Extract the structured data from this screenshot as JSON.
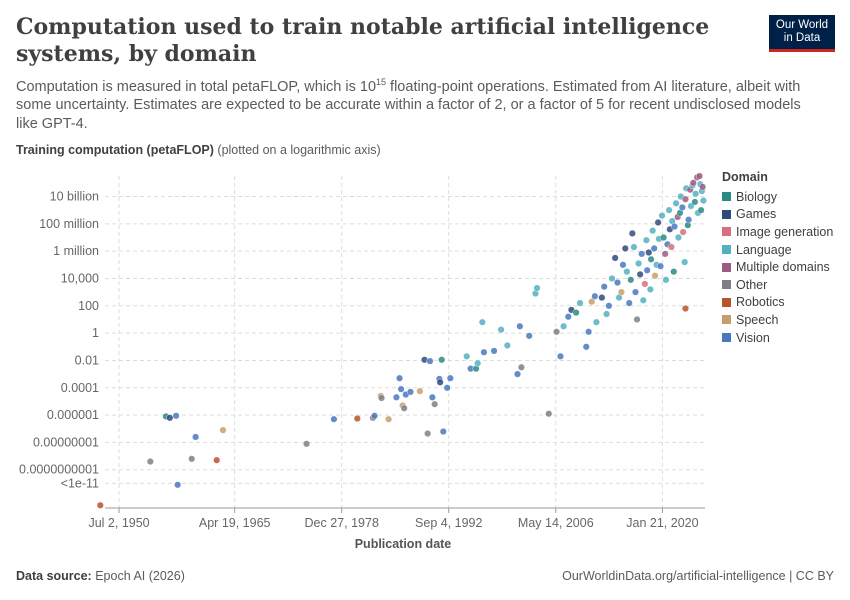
{
  "header": {
    "title": "Computation used to train notable artificial intelligence systems, by domain",
    "subtitle_pre": "Computation is measured in total petaFLOP, which is 10",
    "subtitle_sup": "15",
    "subtitle_post": " floating-point operations. Estimated from AI literature, albeit with some uncertainty. Estimates are expected to be accurate within a factor of 2, or a factor of 5 for recent undisclosed models like GPT-4."
  },
  "logo": {
    "line1": "Our World",
    "line2": "in Data"
  },
  "y_axis_title": {
    "bold": "Training computation (petaFLOP)",
    "note": "(plotted on a logarithmic axis)"
  },
  "footer": {
    "source_label": "Data source:",
    "source_value": "Epoch AI (2026)",
    "link": "OurWorldinData.org/artificial-intelligence | CC BY"
  },
  "colors": {
    "Biology": "#2a8a84",
    "Games": "#2f4b7c",
    "Image generation": "#d6707e",
    "Language": "#52b0bf",
    "Multiple domains": "#9d5a82",
    "Other": "#7d8186",
    "Robotics": "#b8542c",
    "Speech": "#c59d6f",
    "Vision": "#4a78bf"
  },
  "chart_data": {
    "type": "scatter",
    "scale": "log",
    "xlabel": "Publication date",
    "ylabel": "Training computation (petaFLOP)",
    "x_ticks": [
      {
        "label": "Jul 2, 1950",
        "year": 1950.5
      },
      {
        "label": "Apr 19, 1965",
        "year": 1965.3
      },
      {
        "label": "Dec 27, 1978",
        "year": 1979.0
      },
      {
        "label": "Sep 4, 1992",
        "year": 1992.7
      },
      {
        "label": "May 14, 2006",
        "year": 2006.4
      },
      {
        "label": "Jan 21, 2020",
        "year": 2020.05
      }
    ],
    "y_ticks": [
      {
        "label": "<1e-11",
        "exp": -11
      },
      {
        "label": "0.0000000001",
        "exp": -10
      },
      {
        "label": "0.00000001",
        "exp": -8
      },
      {
        "label": "0.000001",
        "exp": -6
      },
      {
        "label": "0.0001",
        "exp": -4
      },
      {
        "label": "0.01",
        "exp": -2
      },
      {
        "label": "1",
        "exp": 0
      },
      {
        "label": "100",
        "exp": 2
      },
      {
        "label": "10,000",
        "exp": 4
      },
      {
        "label": "1 million",
        "exp": 6
      },
      {
        "label": "100 million",
        "exp": 8
      },
      {
        "label": "10 billion",
        "exp": 10
      }
    ],
    "xlim": [
      1948.7,
      2025.5
    ],
    "ylim_exp": [
      -12.8,
      11.5
    ],
    "grid": true,
    "legend": {
      "title": "Domain",
      "position": "right",
      "entries": [
        "Biology",
        "Games",
        "Image generation",
        "Language",
        "Multiple domains",
        "Other",
        "Robotics",
        "Speech",
        "Vision"
      ]
    },
    "points": [
      {
        "d": "Robotics",
        "x": 1948.1,
        "e": -12.6
      },
      {
        "d": "Other",
        "x": 1954.5,
        "e": -9.4
      },
      {
        "d": "Biology",
        "x": 1956.5,
        "e": -6.1
      },
      {
        "d": "Games",
        "x": 1957.0,
        "e": -6.2
      },
      {
        "d": "Vision",
        "x": 1957.8,
        "e": -6.05
      },
      {
        "d": "Vision",
        "x": 1958.0,
        "e": -11.1
      },
      {
        "d": "Other",
        "x": 1959.8,
        "e": -9.2
      },
      {
        "d": "Vision",
        "x": 1960.3,
        "e": -7.6
      },
      {
        "d": "Robotics",
        "x": 1963.0,
        "e": -9.3
      },
      {
        "d": "Speech",
        "x": 1963.8,
        "e": -7.1
      },
      {
        "d": "Other",
        "x": 1974.5,
        "e": -8.1
      },
      {
        "d": "Vision",
        "x": 1978.0,
        "e": -6.3
      },
      {
        "d": "Robotics",
        "x": 1981.0,
        "e": -6.25
      },
      {
        "d": "Other",
        "x": 1983.0,
        "e": -6.2
      },
      {
        "d": "Vision",
        "x": 1983.2,
        "e": -6.05
      },
      {
        "d": "Speech",
        "x": 1984.0,
        "e": -4.6
      },
      {
        "d": "Other",
        "x": 1984.1,
        "e": -4.75
      },
      {
        "d": "Speech",
        "x": 1985.0,
        "e": -6.3
      },
      {
        "d": "Vision",
        "x": 1986.0,
        "e": -4.7
      },
      {
        "d": "Vision",
        "x": 1986.4,
        "e": -3.3
      },
      {
        "d": "Vision",
        "x": 1986.6,
        "e": -4.1
      },
      {
        "d": "Speech",
        "x": 1986.8,
        "e": -5.3
      },
      {
        "d": "Other",
        "x": 1987.0,
        "e": -5.5
      },
      {
        "d": "Vision",
        "x": 1987.2,
        "e": -4.5
      },
      {
        "d": "Vision",
        "x": 1987.8,
        "e": -4.3
      },
      {
        "d": "Speech",
        "x": 1989.0,
        "e": -4.25
      },
      {
        "d": "Games",
        "x": 1989.6,
        "e": -1.95
      },
      {
        "d": "Other",
        "x": 1990.0,
        "e": -7.35
      },
      {
        "d": "Vision",
        "x": 1990.3,
        "e": -2.05
      },
      {
        "d": "Vision",
        "x": 1990.6,
        "e": -4.7
      },
      {
        "d": "Other",
        "x": 1990.9,
        "e": -5.2
      },
      {
        "d": "Vision",
        "x": 1991.5,
        "e": -3.35
      },
      {
        "d": "Games",
        "x": 1991.6,
        "e": -3.6
      },
      {
        "d": "Biology",
        "x": 1991.8,
        "e": -1.95
      },
      {
        "d": "Vision",
        "x": 1992.0,
        "e": -7.2
      },
      {
        "d": "Vision",
        "x": 1992.5,
        "e": -4.0
      },
      {
        "d": "Vision",
        "x": 1992.9,
        "e": -3.3
      },
      {
        "d": "Language",
        "x": 1995.0,
        "e": -1.7
      },
      {
        "d": "Vision",
        "x": 1995.5,
        "e": -2.6
      },
      {
        "d": "Biology",
        "x": 1996.2,
        "e": -2.6
      },
      {
        "d": "Language",
        "x": 1996.4,
        "e": -2.2
      },
      {
        "d": "Language",
        "x": 1997.0,
        "e": 0.8
      },
      {
        "d": "Vision",
        "x": 1997.2,
        "e": -1.4
      },
      {
        "d": "Vision",
        "x": 1998.5,
        "e": -1.3
      },
      {
        "d": "Language",
        "x": 1999.4,
        "e": 0.25
      },
      {
        "d": "Language",
        "x": 2000.2,
        "e": -0.9
      },
      {
        "d": "Vision",
        "x": 2001.5,
        "e": -3.0
      },
      {
        "d": "Other",
        "x": 2002.0,
        "e": -2.5
      },
      {
        "d": "Vision",
        "x": 2001.8,
        "e": 0.5
      },
      {
        "d": "Language",
        "x": 2003.8,
        "e": 2.9
      },
      {
        "d": "Language",
        "x": 2004.0,
        "e": 3.3
      },
      {
        "d": "Vision",
        "x": 2003.0,
        "e": -0.2
      },
      {
        "d": "Other",
        "x": 2005.5,
        "e": -5.9
      },
      {
        "d": "Other",
        "x": 2006.5,
        "e": 0.1
      },
      {
        "d": "Vision",
        "x": 2007.0,
        "e": -1.7
      },
      {
        "d": "Language",
        "x": 2007.4,
        "e": 0.5
      },
      {
        "d": "Vision",
        "x": 2008.0,
        "e": 1.2
      },
      {
        "d": "Games",
        "x": 2008.4,
        "e": 1.7
      },
      {
        "d": "Biology",
        "x": 2009.0,
        "e": 1.5
      },
      {
        "d": "Language",
        "x": 2009.5,
        "e": 2.2
      },
      {
        "d": "Vision",
        "x": 2010.3,
        "e": -1.0
      },
      {
        "d": "Vision",
        "x": 2010.6,
        "e": 0.1
      },
      {
        "d": "Speech",
        "x": 2011.0,
        "e": 2.3
      },
      {
        "d": "Vision",
        "x": 2011.4,
        "e": 2.7
      },
      {
        "d": "Language",
        "x": 2011.6,
        "e": 0.8
      },
      {
        "d": "Games",
        "x": 2012.3,
        "e": 2.6
      },
      {
        "d": "Vision",
        "x": 2012.6,
        "e": 3.4
      },
      {
        "d": "Language",
        "x": 2012.9,
        "e": 1.4
      },
      {
        "d": "Vision",
        "x": 2013.2,
        "e": 2.0
      },
      {
        "d": "Language",
        "x": 2013.6,
        "e": 4.0
      },
      {
        "d": "Games",
        "x": 2014.0,
        "e": 5.5
      },
      {
        "d": "Vision",
        "x": 2014.3,
        "e": 3.7
      },
      {
        "d": "Language",
        "x": 2014.5,
        "e": 2.6
      },
      {
        "d": "Speech",
        "x": 2014.8,
        "e": 3.0
      },
      {
        "d": "Vision",
        "x": 2015.0,
        "e": 5.0
      },
      {
        "d": "Games",
        "x": 2015.3,
        "e": 6.2
      },
      {
        "d": "Language",
        "x": 2015.5,
        "e": 4.5
      },
      {
        "d": "Vision",
        "x": 2015.8,
        "e": 2.2
      },
      {
        "d": "Biology",
        "x": 2016.0,
        "e": 3.9
      },
      {
        "d": "Games",
        "x": 2016.2,
        "e": 7.3
      },
      {
        "d": "Language",
        "x": 2016.4,
        "e": 6.3
      },
      {
        "d": "Vision",
        "x": 2016.6,
        "e": 3.0
      },
      {
        "d": "Other",
        "x": 2016.8,
        "e": 1.0
      },
      {
        "d": "Language",
        "x": 2017.0,
        "e": 5.1
      },
      {
        "d": "Games",
        "x": 2017.2,
        "e": 4.3
      },
      {
        "d": "Vision",
        "x": 2017.4,
        "e": 5.8
      },
      {
        "d": "Language",
        "x": 2017.6,
        "e": 2.4
      },
      {
        "d": "Image generation",
        "x": 2017.8,
        "e": 3.6
      },
      {
        "d": "Language",
        "x": 2018.0,
        "e": 6.8
      },
      {
        "d": "Vision",
        "x": 2018.1,
        "e": 4.6
      },
      {
        "d": "Games",
        "x": 2018.3,
        "e": 5.9
      },
      {
        "d": "Language",
        "x": 2018.5,
        "e": 3.2
      },
      {
        "d": "Biology",
        "x": 2018.6,
        "e": 5.4
      },
      {
        "d": "Language",
        "x": 2018.8,
        "e": 7.5
      },
      {
        "d": "Vision",
        "x": 2019.0,
        "e": 6.2
      },
      {
        "d": "Speech",
        "x": 2019.1,
        "e": 4.2
      },
      {
        "d": "Language",
        "x": 2019.3,
        "e": 5.0
      },
      {
        "d": "Games",
        "x": 2019.5,
        "e": 8.1
      },
      {
        "d": "Language",
        "x": 2019.6,
        "e": 6.9
      },
      {
        "d": "Vision",
        "x": 2019.8,
        "e": 4.9
      },
      {
        "d": "Language",
        "x": 2020.0,
        "e": 8.6
      },
      {
        "d": "Biology",
        "x": 2020.2,
        "e": 7.0
      },
      {
        "d": "Multiple domains",
        "x": 2020.4,
        "e": 5.8
      },
      {
        "d": "Language",
        "x": 2020.5,
        "e": 3.9
      },
      {
        "d": "Vision",
        "x": 2020.7,
        "e": 6.5
      },
      {
        "d": "Language",
        "x": 2020.9,
        "e": 9.0
      },
      {
        "d": "Games",
        "x": 2021.0,
        "e": 7.6
      },
      {
        "d": "Image generation",
        "x": 2021.2,
        "e": 6.3
      },
      {
        "d": "Language",
        "x": 2021.3,
        "e": 8.2
      },
      {
        "d": "Biology",
        "x": 2021.5,
        "e": 4.5
      },
      {
        "d": "Vision",
        "x": 2021.6,
        "e": 7.8
      },
      {
        "d": "Language",
        "x": 2021.8,
        "e": 9.5
      },
      {
        "d": "Multiple domains",
        "x": 2022.0,
        "e": 8.5
      },
      {
        "d": "Language",
        "x": 2022.1,
        "e": 7.0
      },
      {
        "d": "Biology",
        "x": 2022.3,
        "e": 8.8
      },
      {
        "d": "Language",
        "x": 2022.4,
        "e": 10.0
      },
      {
        "d": "Vision",
        "x": 2022.6,
        "e": 9.2
      },
      {
        "d": "Image generation",
        "x": 2022.7,
        "e": 7.4
      },
      {
        "d": "Language",
        "x": 2022.9,
        "e": 5.2
      },
      {
        "d": "Multiple domains",
        "x": 2023.0,
        "e": 9.8
      },
      {
        "d": "Language",
        "x": 2023.1,
        "e": 10.6
      },
      {
        "d": "Biology",
        "x": 2023.3,
        "e": 7.9
      },
      {
        "d": "Vision",
        "x": 2023.4,
        "e": 8.3
      },
      {
        "d": "Multiple domains",
        "x": 2023.6,
        "e": 10.5
      },
      {
        "d": "Language",
        "x": 2023.7,
        "e": 9.3
      },
      {
        "d": "Robotics",
        "x": 2023.0,
        "e": 1.8
      },
      {
        "d": "Language",
        "x": 2023.9,
        "e": 10.8
      },
      {
        "d": "Multiple domains",
        "x": 2024.0,
        "e": 11.0
      },
      {
        "d": "Biology",
        "x": 2024.2,
        "e": 9.6
      },
      {
        "d": "Language",
        "x": 2024.3,
        "e": 10.2
      },
      {
        "d": "Multiple domains",
        "x": 2024.5,
        "e": 11.4
      },
      {
        "d": "Language",
        "x": 2024.6,
        "e": 8.8
      },
      {
        "d": "Multiple domains",
        "x": 2024.8,
        "e": 11.5
      },
      {
        "d": "Language",
        "x": 2024.9,
        "e": 10.9
      },
      {
        "d": "Biology",
        "x": 2025.0,
        "e": 9.0
      },
      {
        "d": "Language",
        "x": 2025.1,
        "e": 10.4
      },
      {
        "d": "Multiple domains",
        "x": 2025.2,
        "e": 10.7
      },
      {
        "d": "Language",
        "x": 2025.3,
        "e": 9.7
      }
    ]
  }
}
